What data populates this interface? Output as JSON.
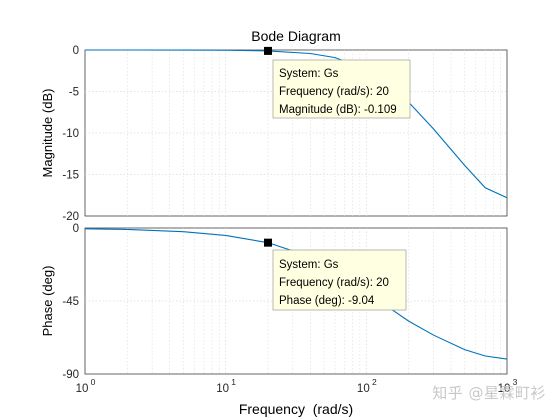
{
  "chart_data": [
    {
      "type": "line",
      "title": "Bode Diagram",
      "ylabel": "Magnitude (dB)",
      "xlabel": "",
      "xscale": "log",
      "xlim": [
        1,
        1000
      ],
      "ylim": [
        -20,
        0
      ],
      "yticks": [
        0,
        -5,
        -10,
        -15,
        -20
      ],
      "grid": true,
      "series": [
        {
          "name": "Gs",
          "color": "#0072bd",
          "x": [
            1,
            2,
            5,
            10,
            20,
            40,
            60,
            100,
            150,
            200,
            300,
            500,
            700,
            1000
          ],
          "y": [
            0,
            0,
            -0.01,
            -0.03,
            -0.109,
            -0.42,
            -0.92,
            -2.35,
            -4.4,
            -6.3,
            -9.5,
            -13.9,
            -16.6,
            -17.8
          ]
        }
      ],
      "datatip": {
        "x": 20,
        "lines": [
          "System: Gs",
          "Frequency (rad/s): 20",
          "Magnitude (dB): -0.109"
        ]
      }
    },
    {
      "type": "line",
      "title": "",
      "ylabel": "Phase (deg)",
      "xlabel": "Frequency  (rad/s)",
      "xscale": "log",
      "xlim": [
        1,
        1000
      ],
      "ylim": [
        -90,
        0
      ],
      "yticks": [
        0,
        -45,
        -90
      ],
      "xticks": [
        1,
        10,
        100,
        1000
      ],
      "grid": true,
      "series": [
        {
          "name": "Gs",
          "color": "#0072bd",
          "x": [
            1,
            2,
            5,
            10,
            20,
            40,
            60,
            100,
            150,
            200,
            300,
            500,
            700,
            1000
          ],
          "y": [
            -0.5,
            -0.9,
            -2.3,
            -4.6,
            -9.04,
            -17.7,
            -25.6,
            -38.7,
            -50.0,
            -57.4,
            -66.0,
            -75.0,
            -78.9,
            -80.8
          ]
        }
      ],
      "datatip": {
        "x": 20,
        "lines": [
          "System: Gs",
          "Frequency (rad/s): 20",
          "Phase (deg): -9.04"
        ]
      }
    }
  ],
  "tick_labels": {
    "x_base": "10",
    "x_exponents": [
      "0",
      "1",
      "2",
      "3"
    ]
  },
  "watermark": "知乎 @星霖町衫",
  "colors": {
    "line": "#0072bd",
    "tip_bg": "#ffffe1",
    "grid": "#dcdcdc"
  }
}
